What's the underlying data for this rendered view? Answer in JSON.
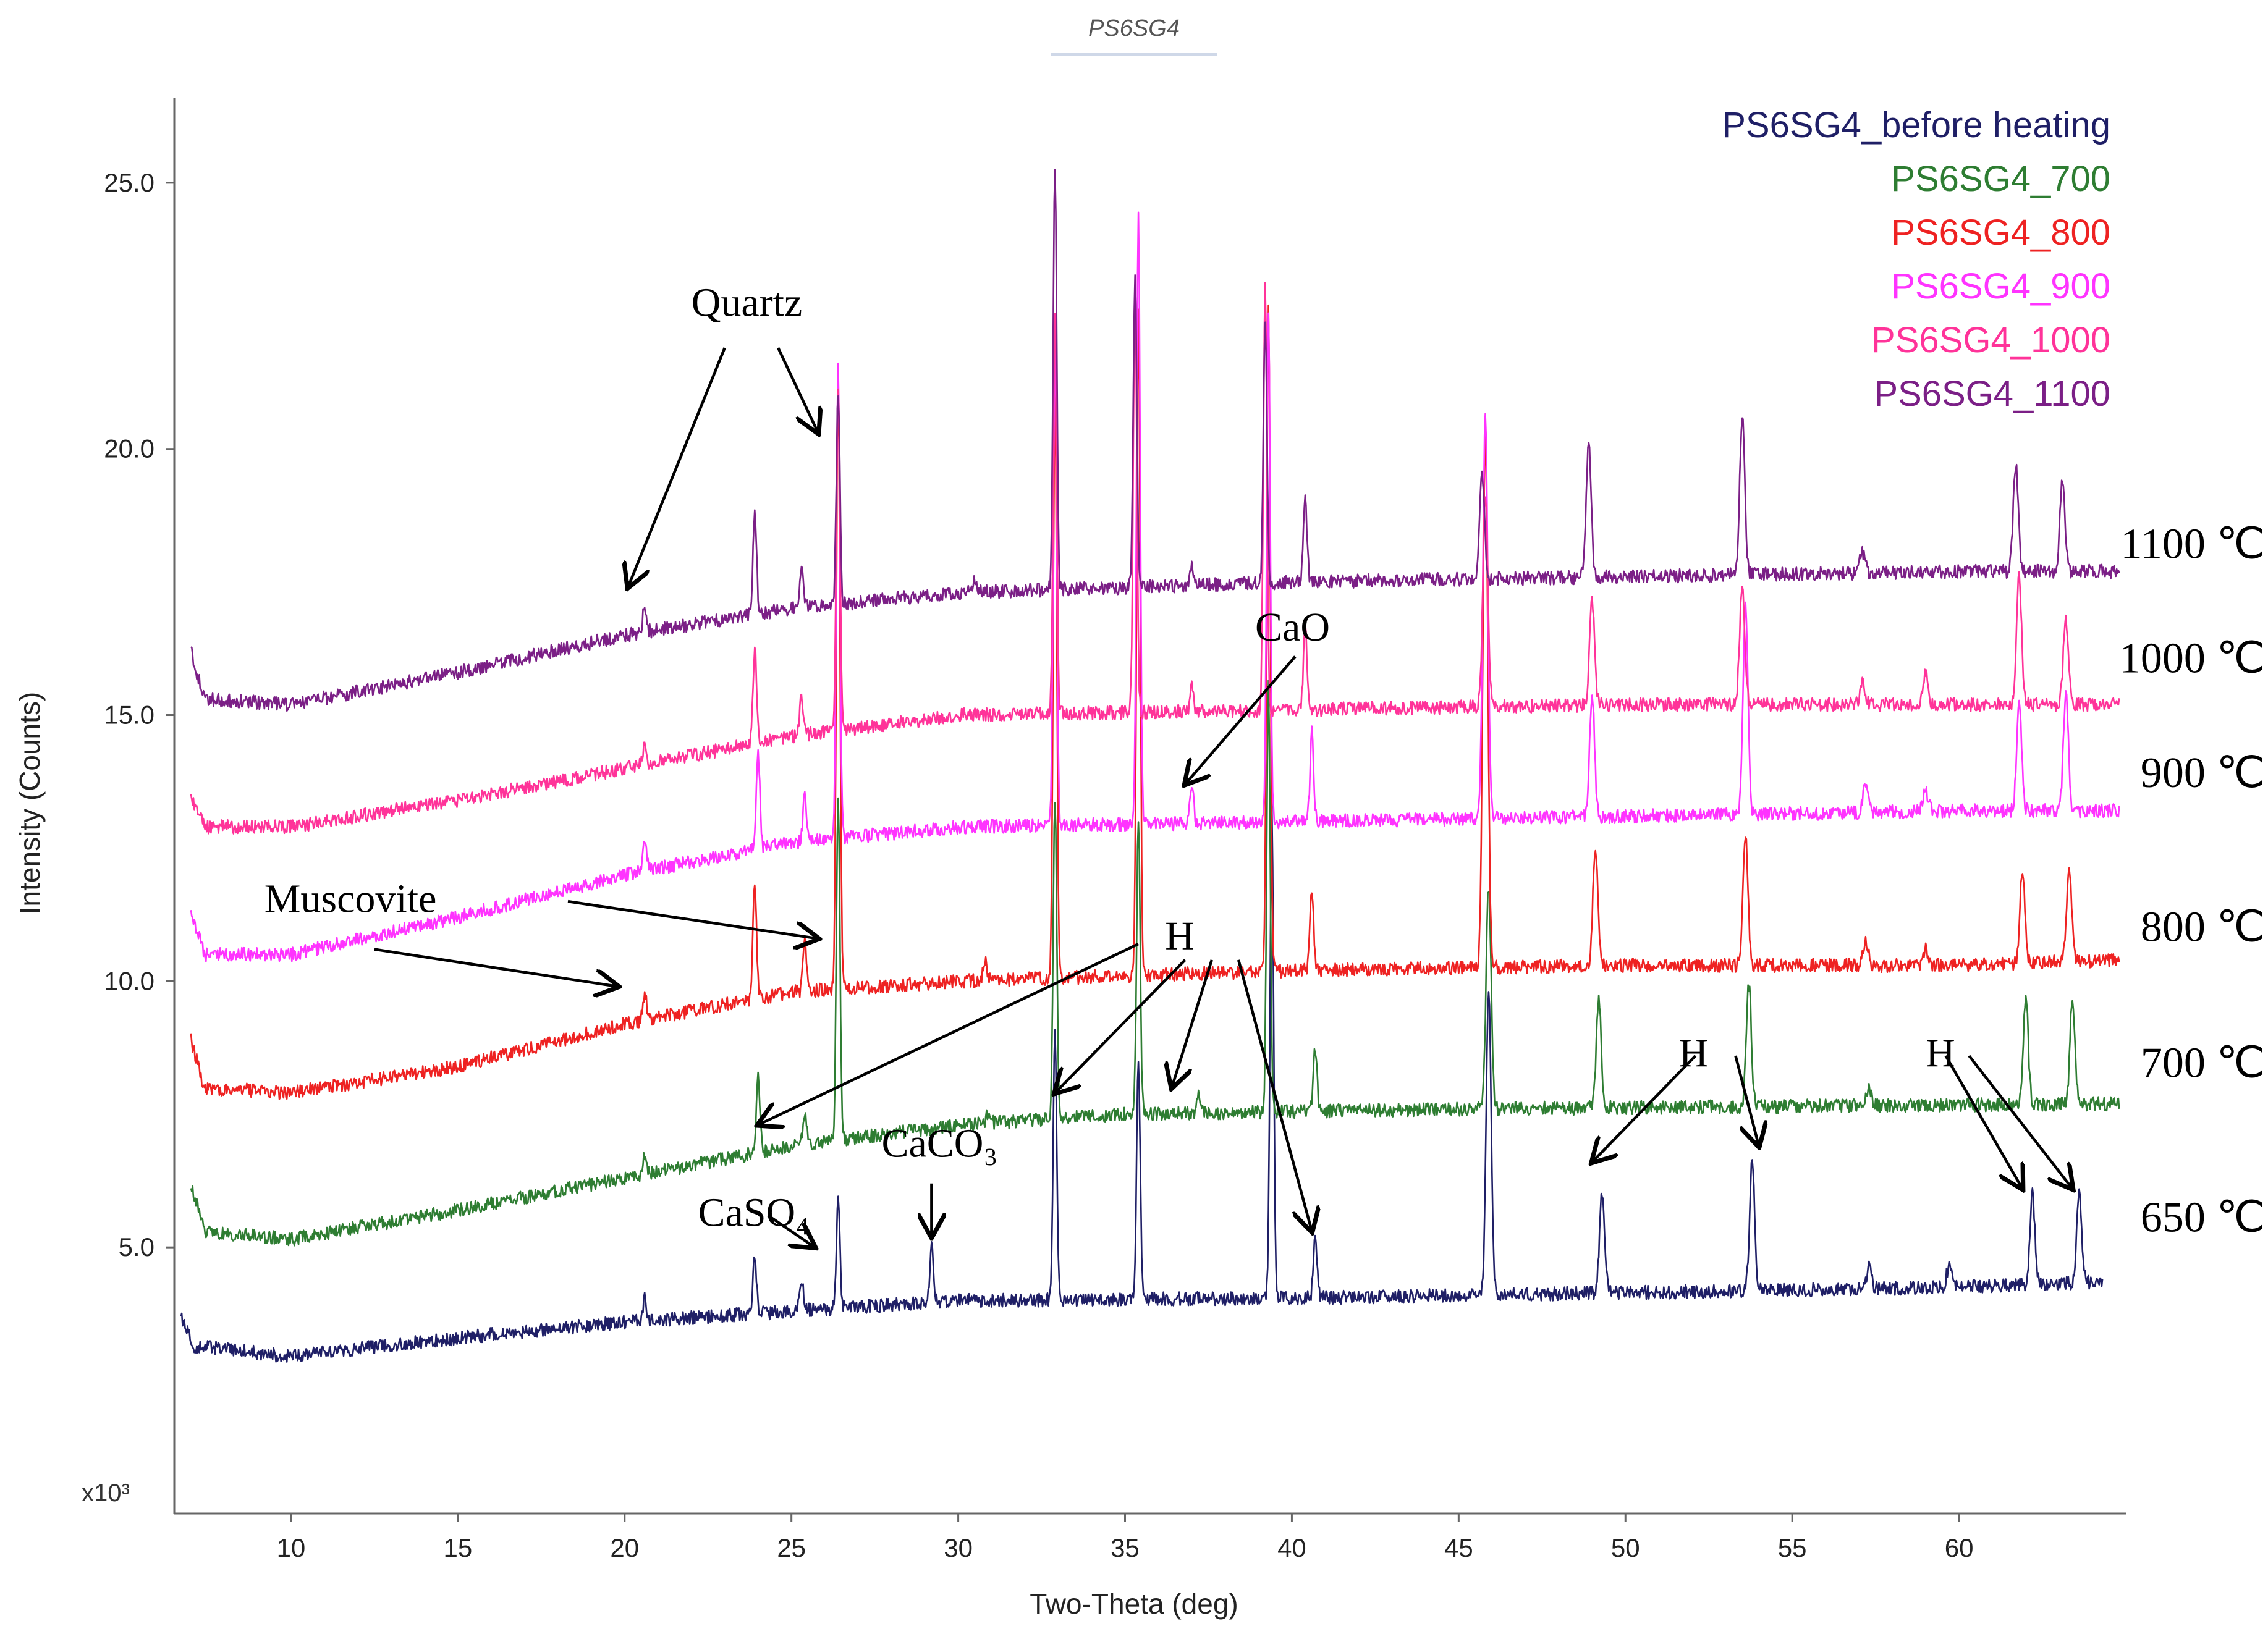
{
  "chart_data": {
    "type": "line",
    "title": "PS6SG4",
    "xlabel": "Two-Theta (deg)",
    "ylabel": "Intensity (Counts)",
    "y_unit": "x10³",
    "xlim": [
      6.5,
      65
    ],
    "ylim": [
      0,
      26.6
    ],
    "x_ticks": [
      "10",
      "15",
      "20",
      "25",
      "30",
      "35",
      "40",
      "45",
      "50",
      "55",
      "60"
    ],
    "y_ticks": [
      "5.0",
      "10.0",
      "15.0",
      "20.0",
      "25.0"
    ],
    "legend_position": "top-right",
    "series": [
      {
        "name": "PS6SG4_before heating",
        "color": "#1f1f66",
        "temp_label": "650 ℃",
        "temp_label_y": 5.3,
        "x_end": 64.3,
        "baseline": [
          [
            6.7,
            3.7
          ],
          [
            7.1,
            3.15
          ],
          [
            10,
            2.95
          ],
          [
            15,
            3.3
          ],
          [
            20,
            3.6
          ],
          [
            25,
            3.8
          ],
          [
            30,
            4.0
          ],
          [
            40,
            4.05
          ],
          [
            50,
            4.15
          ],
          [
            60,
            4.25
          ],
          [
            64.3,
            4.35
          ]
        ],
        "peaks": [
          [
            20.6,
            0.4
          ],
          [
            23.9,
            1.1
          ],
          [
            25.3,
            0.6
          ],
          [
            26.4,
            2.0
          ],
          [
            29.2,
            1.1
          ],
          [
            32.9,
            5.0
          ],
          [
            35.4,
            4.5
          ],
          [
            39.4,
            9.2
          ],
          [
            40.7,
            1.2
          ],
          [
            45.9,
            5.8
          ],
          [
            49.3,
            1.9
          ],
          [
            53.8,
            2.5
          ],
          [
            57.3,
            0.4
          ],
          [
            59.7,
            0.4
          ],
          [
            62.2,
            1.7
          ],
          [
            63.6,
            1.7
          ]
        ]
      },
      {
        "name": "PS6SG4_700",
        "color": "#2e7d32",
        "temp_label": "700 ℃",
        "temp_label_y": 8.2,
        "x_end": 64.8,
        "baseline": [
          [
            7.0,
            6.2
          ],
          [
            7.4,
            5.3
          ],
          [
            10,
            5.15
          ],
          [
            15,
            5.7
          ],
          [
            20,
            6.3
          ],
          [
            25,
            6.9
          ],
          [
            30,
            7.3
          ],
          [
            35,
            7.5
          ],
          [
            45,
            7.6
          ],
          [
            55,
            7.65
          ],
          [
            64.8,
            7.7
          ]
        ],
        "peaks": [
          [
            20.6,
            0.4
          ],
          [
            24.0,
            1.5
          ],
          [
            25.4,
            0.6
          ],
          [
            26.4,
            6.5
          ],
          [
            30.9,
            0.2
          ],
          [
            32.9,
            6.0
          ],
          [
            35.4,
            5.5
          ],
          [
            37.2,
            0.3
          ],
          [
            39.3,
            8.0
          ],
          [
            40.7,
            1.2
          ],
          [
            45.9,
            4.2
          ],
          [
            49.2,
            2.0
          ],
          [
            53.7,
            2.3
          ],
          [
            57.3,
            0.3
          ],
          [
            62.0,
            2.0
          ],
          [
            63.4,
            2.0
          ]
        ]
      },
      {
        "name": "PS6SG4_800",
        "color": "#ee2222",
        "temp_label": "800 ℃",
        "temp_label_y": 10.75,
        "x_end": 64.8,
        "baseline": [
          [
            7.0,
            8.9
          ],
          [
            7.4,
            8.0
          ],
          [
            10,
            7.9
          ],
          [
            15,
            8.4
          ],
          [
            20,
            9.2
          ],
          [
            25,
            9.8
          ],
          [
            30,
            10.0
          ],
          [
            40,
            10.2
          ],
          [
            50,
            10.3
          ],
          [
            60,
            10.3
          ],
          [
            64.8,
            10.4
          ]
        ],
        "peaks": [
          [
            20.6,
            0.5
          ],
          [
            23.9,
            2.2
          ],
          [
            25.4,
            1.0
          ],
          [
            26.4,
            11.5
          ],
          [
            30.8,
            0.4
          ],
          [
            32.9,
            11.0
          ],
          [
            35.4,
            12.5
          ],
          [
            39.3,
            12.5
          ],
          [
            40.6,
            1.5
          ],
          [
            45.8,
            10.0
          ],
          [
            49.1,
            2.2
          ],
          [
            53.6,
            2.4
          ],
          [
            57.2,
            0.5
          ],
          [
            59.0,
            0.3
          ],
          [
            61.9,
            1.8
          ],
          [
            63.3,
            1.8
          ]
        ]
      },
      {
        "name": "PS6SG4_900",
        "color": "#ff33ff",
        "temp_label": "900 ℃",
        "temp_label_y": 13.65,
        "x_end": 64.8,
        "baseline": [
          [
            7.0,
            11.3
          ],
          [
            7.4,
            10.5
          ],
          [
            10,
            10.5
          ],
          [
            15,
            11.2
          ],
          [
            20,
            12.0
          ],
          [
            25,
            12.6
          ],
          [
            30,
            12.9
          ],
          [
            40,
            13.0
          ],
          [
            50,
            13.1
          ],
          [
            60,
            13.2
          ],
          [
            64.8,
            13.2
          ]
        ],
        "peaks": [
          [
            20.6,
            0.6
          ],
          [
            24.0,
            1.8
          ],
          [
            25.4,
            0.9
          ],
          [
            26.4,
            9.0
          ],
          [
            32.9,
            9.0
          ],
          [
            35.4,
            11.5
          ],
          [
            37.0,
            0.7
          ],
          [
            39.3,
            9.5
          ],
          [
            40.6,
            1.7
          ],
          [
            45.8,
            7.5
          ],
          [
            49.0,
            2.3
          ],
          [
            53.6,
            4.0
          ],
          [
            57.2,
            0.5
          ],
          [
            59.0,
            0.4
          ],
          [
            61.8,
            2.0
          ],
          [
            63.2,
            2.2
          ]
        ]
      },
      {
        "name": "PS6SG4_1000",
        "color": "#ff3399",
        "temp_label": "1000 ℃",
        "temp_label_y": 15.8,
        "x_end": 64.8,
        "baseline": [
          [
            7.0,
            13.5
          ],
          [
            7.4,
            12.9
          ],
          [
            10,
            12.9
          ],
          [
            15,
            13.4
          ],
          [
            20,
            14.0
          ],
          [
            25,
            14.6
          ],
          [
            30,
            15.0
          ],
          [
            40,
            15.1
          ],
          [
            50,
            15.2
          ],
          [
            60,
            15.2
          ],
          [
            64.8,
            15.2
          ]
        ],
        "peaks": [
          [
            20.6,
            0.4
          ],
          [
            23.9,
            1.8
          ],
          [
            25.3,
            0.7
          ],
          [
            26.4,
            6.5
          ],
          [
            32.9,
            7.5
          ],
          [
            35.3,
            8.0
          ],
          [
            37.0,
            0.5
          ],
          [
            39.2,
            8.0
          ],
          [
            40.4,
            1.5
          ],
          [
            45.8,
            4.0
          ],
          [
            49.0,
            2.0
          ],
          [
            53.5,
            2.3
          ],
          [
            57.1,
            0.4
          ],
          [
            59.0,
            0.6
          ],
          [
            61.8,
            2.4
          ],
          [
            63.2,
            1.6
          ]
        ]
      },
      {
        "name": "PS6SG4_1100",
        "color": "#7b1f86",
        "temp_label": "1100 ℃",
        "temp_label_y": 17.95,
        "x_end": 64.8,
        "baseline": [
          [
            7.0,
            16.2
          ],
          [
            7.4,
            15.3
          ],
          [
            10,
            15.2
          ],
          [
            15,
            15.8
          ],
          [
            20,
            16.5
          ],
          [
            25,
            17.0
          ],
          [
            30,
            17.3
          ],
          [
            40,
            17.5
          ],
          [
            50,
            17.6
          ],
          [
            60,
            17.7
          ],
          [
            64.8,
            17.7
          ]
        ],
        "peaks": [
          [
            20.6,
            0.5
          ],
          [
            23.9,
            2.0
          ],
          [
            25.3,
            0.8
          ],
          [
            26.4,
            4.0
          ],
          [
            30.5,
            0.2
          ],
          [
            32.9,
            8.0
          ],
          [
            35.3,
            5.8
          ],
          [
            37.0,
            0.4
          ],
          [
            39.2,
            5.0
          ],
          [
            40.4,
            1.6
          ],
          [
            45.7,
            2.0
          ],
          [
            48.9,
            2.5
          ],
          [
            53.5,
            3.0
          ],
          [
            57.1,
            0.4
          ],
          [
            61.7,
            2.0
          ],
          [
            63.1,
            1.7
          ]
        ]
      }
    ],
    "annotations": [
      {
        "text": "Quartz",
        "x": 22.0,
        "y": 22.5,
        "arrows": [
          [
            23.0,
            21.9,
            20.1,
            17.4
          ],
          [
            24.6,
            21.9,
            25.8,
            20.3
          ]
        ]
      },
      {
        "text": "CaO",
        "x": 38.9,
        "y": 16.4,
        "arrows": [
          [
            40.1,
            16.1,
            36.8,
            13.7
          ]
        ]
      },
      {
        "text": "Muscovite",
        "x": 9.2,
        "y": 11.3,
        "arrows": [
          [
            18.3,
            11.5,
            25.8,
            10.8
          ],
          [
            12.5,
            10.6,
            19.8,
            9.9
          ]
        ]
      },
      {
        "text": "H",
        "x": 36.2,
        "y": 10.6,
        "arrows": [
          [
            35.4,
            10.7,
            24.0,
            7.3
          ],
          [
            36.8,
            10.4,
            32.9,
            7.9
          ],
          [
            37.6,
            10.4,
            36.4,
            8.0
          ],
          [
            38.4,
            10.4,
            40.6,
            5.3
          ]
        ]
      },
      {
        "text": "H",
        "x": 51.6,
        "y": 8.4,
        "arrows": [
          [
            52.1,
            8.6,
            49.0,
            6.6
          ],
          [
            53.3,
            8.6,
            54.0,
            6.9
          ]
        ]
      },
      {
        "text": "H",
        "x": 59.0,
        "y": 8.4,
        "arrows": [
          [
            59.6,
            8.6,
            61.9,
            6.1
          ],
          [
            60.3,
            8.6,
            63.4,
            6.1
          ]
        ]
      },
      {
        "text": "CaCO₃",
        "x": 27.7,
        "y": 6.7,
        "arrows": [
          [
            29.2,
            6.2,
            29.2,
            5.2
          ]
        ]
      },
      {
        "text": "CaSO₄",
        "x": 22.2,
        "y": 5.4,
        "arrows": [
          [
            24.3,
            5.6,
            25.7,
            5.0
          ]
        ]
      }
    ]
  }
}
